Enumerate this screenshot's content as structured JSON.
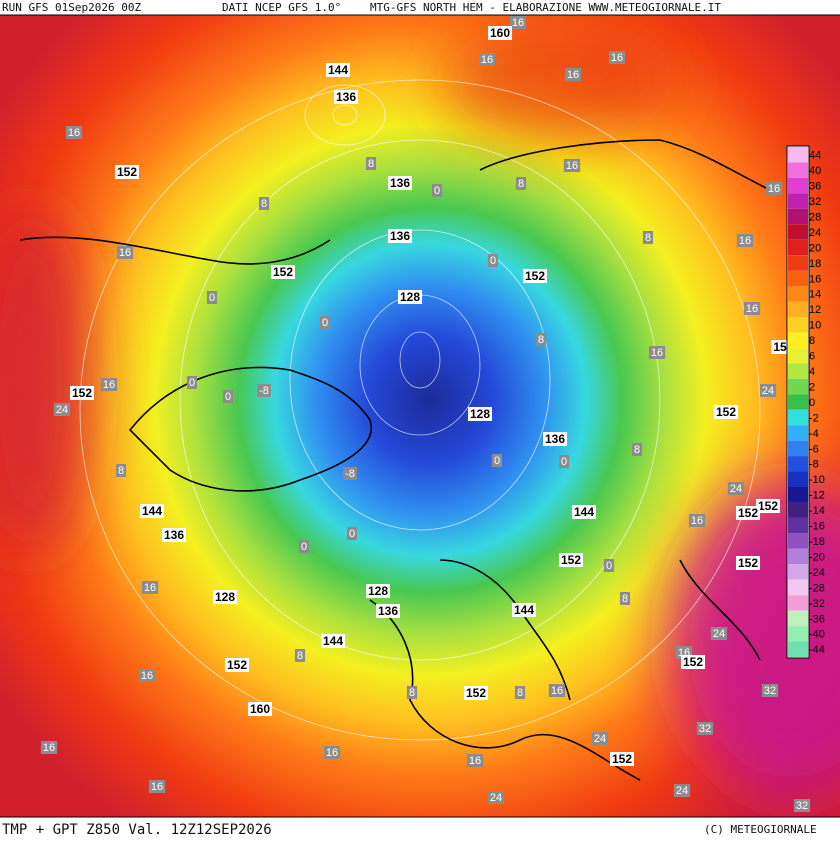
{
  "header": {
    "run": "RUN GFS 01Sep2026 00Z",
    "source": "DATI NCEP GFS 1.0°",
    "product": "MTG-GFS NORTH HEM - ELABORAZIONE WWW.METEOGIORNALE.IT"
  },
  "footer": {
    "field": "TMP + GPT Z850 Val. 12Z12SEP2026",
    "copyright": "(C) METEOGIORNALE"
  },
  "colorbar": {
    "labels": [
      44,
      40,
      36,
      32,
      28,
      24,
      20,
      18,
      16,
      14,
      12,
      10,
      8,
      6,
      4,
      2,
      0,
      -2,
      -4,
      -6,
      -8,
      -10,
      -12,
      -14,
      -16,
      -18,
      -20,
      -24,
      -28,
      -32,
      -36,
      -40,
      -44
    ],
    "colors": [
      "#f8b8f0",
      "#f070e0",
      "#e040d0",
      "#c020b0",
      "#b01070",
      "#c01030",
      "#e02020",
      "#f03c10",
      "#f86010",
      "#fc8818",
      "#ffb020",
      "#ffd020",
      "#ffee20",
      "#e8f030",
      "#b0e840",
      "#70d850",
      "#38c048",
      "#30e0e0",
      "#30b0f8",
      "#3080f0",
      "#2050e0",
      "#1830c0",
      "#181890",
      "#402080",
      "#6030a0",
      "#9050c0",
      "#b080d8",
      "#d0a8e8",
      "#f0c8f0",
      "#f0a0d8",
      "#c0f0c0",
      "#90f0b0",
      "#70e0b0"
    ]
  },
  "map": {
    "height_labels": [
      160,
      144,
      136,
      152,
      136,
      136,
      152,
      152,
      128,
      152,
      128,
      152,
      136,
      144,
      136,
      144,
      152,
      152,
      152,
      152,
      128,
      128,
      136,
      144,
      144,
      152,
      152,
      160,
      152,
      152,
      15
    ],
    "temp_labels": [
      16,
      16,
      16,
      16,
      16,
      16,
      16,
      16,
      16,
      8,
      8,
      0,
      8,
      0,
      8,
      16,
      16,
      0,
      0,
      8,
      0,
      -8,
      0,
      16,
      24,
      24,
      8,
      0,
      0,
      -8,
      8,
      24,
      16,
      0,
      0,
      0,
      16,
      8,
      24,
      16,
      8,
      16,
      8,
      8,
      16,
      32,
      32,
      24,
      16,
      16,
      16,
      16,
      24,
      24,
      32
    ]
  }
}
